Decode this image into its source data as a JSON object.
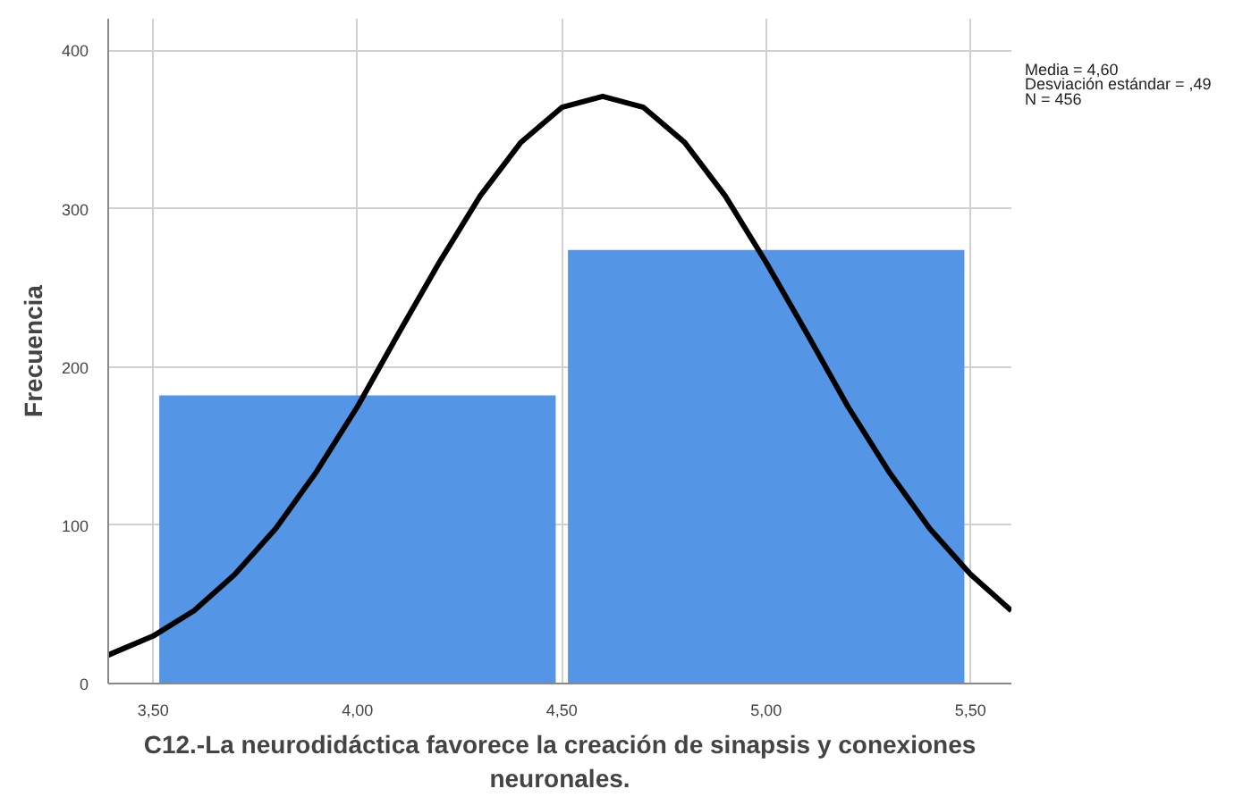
{
  "chart_data": {
    "type": "histogram",
    "xlabel": "C12.-La neurodidáctica favorece la creación de sinapsis y conexiones\nneuronales.",
    "ylabel": "Frecuencia",
    "series": [
      {
        "bins": [
          3.5,
          4.5,
          5.5
        ],
        "values": [
          182,
          274
        ],
        "color": "#5595e5"
      },
      {
        "type": "line",
        "color": "#000000",
        "x": [
          3.39,
          3.5,
          3.6,
          3.7,
          3.8,
          3.9,
          4.0,
          4.1,
          4.2,
          4.3,
          4.4,
          4.5,
          4.6,
          4.7,
          4.8,
          4.9,
          5.0,
          5.1,
          5.2,
          5.3,
          5.4,
          5.5,
          5.6
        ],
        "values": [
          18,
          30,
          46,
          69,
          98,
          134,
          175,
          221,
          266,
          308,
          342,
          364,
          371,
          364,
          342,
          308,
          266,
          221,
          175,
          134,
          98,
          69,
          46
        ]
      }
    ],
    "xlim": [
      3.39,
      5.6
    ],
    "xticks": [
      {
        "value": 3.5,
        "label": "3,50"
      },
      {
        "value": 4.0,
        "label": "4,00"
      },
      {
        "value": 4.5,
        "label": "4,50"
      },
      {
        "value": 5.0,
        "label": "5,00"
      },
      {
        "value": 5.5,
        "label": "5,50"
      }
    ],
    "ylim": [
      0,
      420
    ],
    "yticks": [
      0,
      100,
      200,
      300,
      400
    ],
    "grid": true,
    "annotations": [
      "Media = 4,60",
      "Desviación estándar = ,49",
      "N = 456"
    ]
  }
}
